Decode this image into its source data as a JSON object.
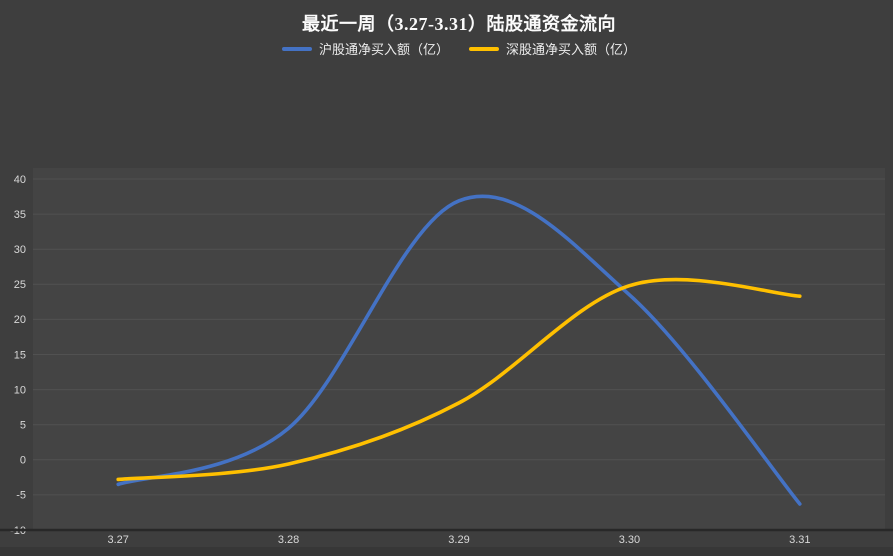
{
  "page": {
    "background_color": "#3e3e3e",
    "plot_background_color": "#444444",
    "gridline_color": "#515151",
    "axis_line_color": "#282828",
    "axis_label_color": "#d8d8d8"
  },
  "chart_data": {
    "type": "line",
    "title": "最近一周（3.27-3.31）陆股通资金流向",
    "categories": [
      "3.27",
      "3.28",
      "3.29",
      "3.30",
      "3.31"
    ],
    "series": [
      {
        "name": "沪股通净买入额（亿）",
        "color": "#4472c4",
        "values": [
          -3.5,
          4.5,
          36.9,
          23.5,
          -6.3
        ]
      },
      {
        "name": "深股通净买入额（亿）",
        "color": "#ffc000",
        "values": [
          -2.8,
          -0.6,
          8.1,
          24.8,
          23.3
        ]
      }
    ],
    "xlabel": "",
    "ylabel": "",
    "ylim": [
      -10,
      40
    ],
    "yticks": [
      -10,
      -5,
      0,
      5,
      10,
      15,
      20,
      25,
      30,
      35,
      40
    ],
    "grid": true,
    "smooth": true,
    "legend_position": "top"
  }
}
